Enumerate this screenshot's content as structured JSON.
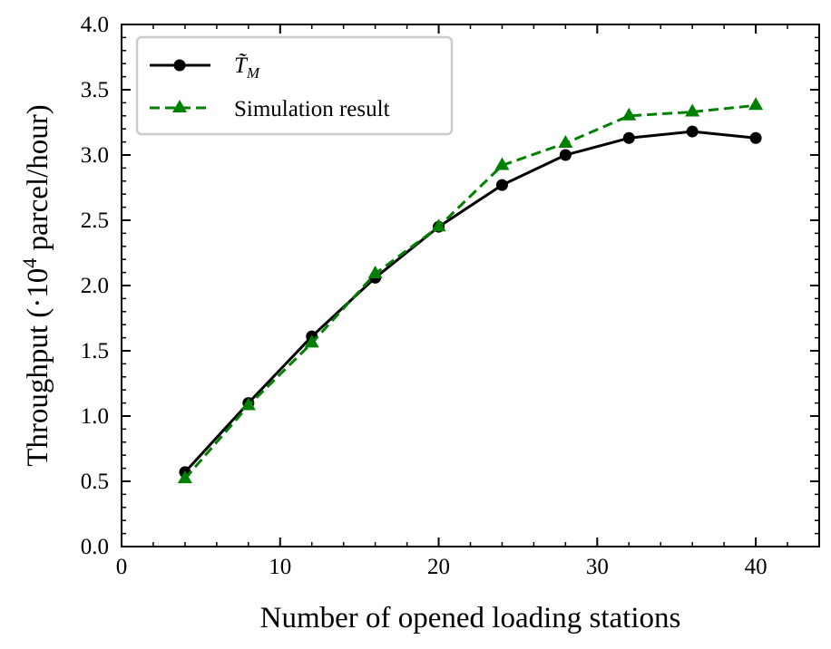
{
  "chart_data": {
    "type": "line",
    "title": "",
    "xlabel": "Number of opened loading stations",
    "ylabel": {
      "prefix": "Throughput (·10",
      "superscript": "4",
      "suffix": " parcel/hour)"
    },
    "xlim": [
      0,
      44
    ],
    "ylim": [
      0.0,
      4.0
    ],
    "xticks": [
      0,
      10,
      20,
      30,
      40
    ],
    "xtick_labels": [
      "0",
      "10",
      "20",
      "30",
      "40"
    ],
    "yticks": [
      0.0,
      0.5,
      1.0,
      1.5,
      2.0,
      2.5,
      3.0,
      3.5,
      4.0
    ],
    "ytick_labels": [
      "0.0",
      "0.5",
      "1.0",
      "1.5",
      "2.0",
      "2.5",
      "3.0",
      "3.5",
      "4.0"
    ],
    "legend_position": "top-left",
    "x": [
      4,
      8,
      12,
      16,
      20,
      24,
      28,
      32,
      36,
      40
    ],
    "series": [
      {
        "name": "T̃_M",
        "label_main": "T̃",
        "label_sub": "M",
        "color": "#000000",
        "linestyle": "solid",
        "marker": "circle",
        "values": [
          0.57,
          1.1,
          1.61,
          2.06,
          2.45,
          2.77,
          3.0,
          3.13,
          3.18,
          3.13
        ]
      },
      {
        "name": "Simulation result",
        "label_main": "Simulation result",
        "color": "#008000",
        "linestyle": "dashed",
        "marker": "triangle",
        "values": [
          0.52,
          1.08,
          1.56,
          2.09,
          2.45,
          2.92,
          3.09,
          3.3,
          3.33,
          3.38
        ]
      }
    ]
  }
}
